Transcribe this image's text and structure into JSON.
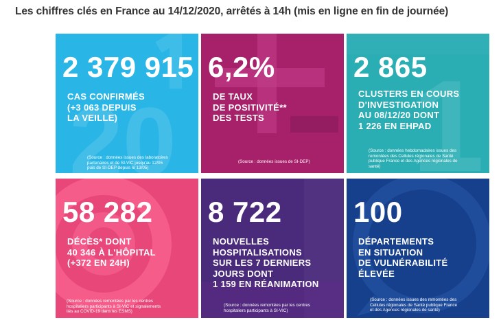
{
  "page": {
    "title": "Les chiffres clés en France au 14/12/2020, arrêtés à 14h (mis en ligne en fin de journée)"
  },
  "tiles": [
    {
      "value": "2 379 915",
      "label": "CAS CONFIRMÉS\n(+3 063 DEPUIS\nLA VEILLE)",
      "source": "(Source : données issues des laboratoires\npartenaires et de SI-VIC jusqu'au 12/05\npuis de SI-DEP depuis le 13/05)",
      "color": "#29b6e6"
    },
    {
      "value": "6,2%",
      "label": "DE TAUX\nDE POSITIVITÉ**\nDES TESTS",
      "source": "(Source : données issues de SI-DEP)",
      "color": "#a6206a"
    },
    {
      "value": "2 865",
      "label": "CLUSTERS EN COURS\nD'INVESTIGATION\nAU 08/12/20 DONT\n1 226 EN EHPAD",
      "source": "(Source : données hebdomadaires issues des\nremontées des Cellules régionales de Santé\npublique France et des Agences régionales de\nsanté)",
      "color": "#2aaeb4"
    },
    {
      "value": "58 282",
      "label": "DÉCÈS* DONT\n40 346 À L'HÔPITAL\n(+372 EN 24H)",
      "source": "(Source : données remontées par les centres\nhospitaliers participants à SI-VIC et signalements\nliés au COVID-19 dans les ESMS)",
      "color": "#e8477a"
    },
    {
      "value": "8 722",
      "label": "NOUVELLES\nHOSPITALISATIONS\nSUR LES 7 DERNIERS\nJOURS DONT\n1 159 EN RÉANIMATION",
      "source": "(Source : données remontées par les centres\nhospitaliers participants à SI-VIC)",
      "color": "#492a7b"
    },
    {
      "value": "100",
      "label": "DÉPARTEMENTS\nEN SITUATION\nDE VULNÉRABILITÉ\nÉLEVÉE",
      "source": "(Source : données issues des remontées des\nCellules régionales de Santé publique France\net des Agences régionales de santé)",
      "color": "#163f8c"
    }
  ]
}
